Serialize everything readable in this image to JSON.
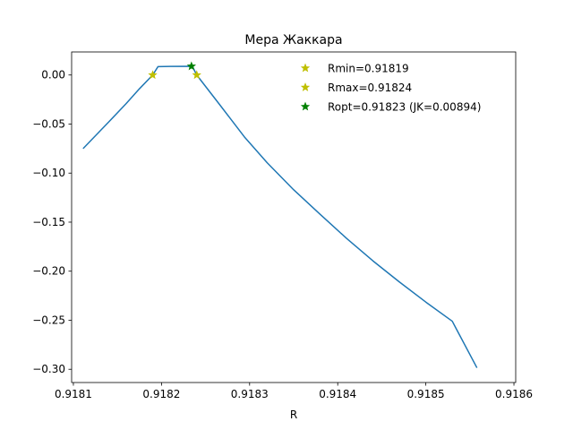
{
  "chart_data": {
    "type": "line",
    "title": "Мера Жаккара",
    "xlabel": "R",
    "ylabel": "",
    "xlim": [
      0.918098,
      0.918602
    ],
    "ylim": [
      -0.3135,
      0.0235
    ],
    "xticks": [
      {
        "value": 0.9181,
        "label": "0.9181"
      },
      {
        "value": 0.9182,
        "label": "0.9182"
      },
      {
        "value": 0.9183,
        "label": "0.9183"
      },
      {
        "value": 0.9184,
        "label": "0.9184"
      },
      {
        "value": 0.9185,
        "label": "0.9185"
      },
      {
        "value": 0.9186,
        "label": "0.9186"
      }
    ],
    "yticks": [
      {
        "value": 0.0,
        "label": "0.00"
      },
      {
        "value": -0.05,
        "label": "−0.05"
      },
      {
        "value": -0.1,
        "label": "−0.10"
      },
      {
        "value": -0.15,
        "label": "−0.15"
      },
      {
        "value": -0.2,
        "label": "−0.20"
      },
      {
        "value": -0.25,
        "label": "−0.25"
      },
      {
        "value": -0.3,
        "label": "−0.30"
      }
    ],
    "series": [
      {
        "color": "#1f77b4",
        "x": [
          0.918111,
          0.91814,
          0.91816,
          0.918175,
          0.91819,
          0.918196,
          0.91821,
          0.918235,
          0.91824,
          0.918265,
          0.918294,
          0.91832,
          0.91835,
          0.91838,
          0.91841,
          0.91844,
          0.91847,
          0.9185,
          0.91853,
          0.918558
        ],
        "y": [
          -0.075,
          -0.048,
          -0.029,
          -0.014,
          0.0,
          0.0085,
          0.0088,
          0.0089,
          0.0,
          -0.029,
          -0.063,
          -0.0895,
          -0.117,
          -0.142,
          -0.1665,
          -0.1895,
          -0.211,
          -0.2315,
          -0.251,
          -0.2985
        ]
      }
    ],
    "markers": [
      {
        "label": "Rmin=0.91819",
        "x": 0.91819,
        "y": 0.0,
        "color": "#bfbf00"
      },
      {
        "label": "Rmax=0.91824",
        "x": 0.91824,
        "y": 0.0,
        "color": "#bfbf00"
      },
      {
        "label": "Ropt=0.91823 (JK=0.00894)",
        "x": 0.918234,
        "y": 0.00894,
        "color": "#008000"
      }
    ],
    "legend_position": "top-right",
    "grid": false
  }
}
